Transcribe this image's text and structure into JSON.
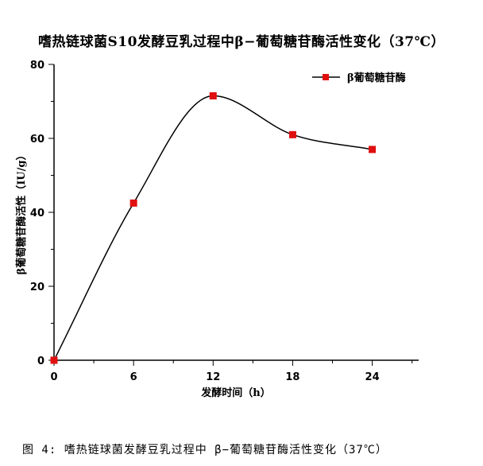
{
  "chart_data": {
    "type": "line",
    "title": "嗜热链球菌S10发酵豆乳过程中β−葡萄糖苷酶活性变化（37℃）",
    "xlabel": "发酵时间（h）",
    "ylabel": "β葡萄糖苷酶活性（IU/g）",
    "x": [
      0,
      6,
      12,
      18,
      24
    ],
    "x_ticks": [
      0,
      6,
      12,
      18,
      24
    ],
    "xlim": [
      0,
      27.5
    ],
    "ylim": [
      0,
      80
    ],
    "y_ticks": [
      0,
      20,
      40,
      60,
      80
    ],
    "series": [
      {
        "name": "β葡萄糖苷酶",
        "values": [
          0,
          42.5,
          71.5,
          61,
          57
        ],
        "color": "#e01010",
        "marker": "square"
      }
    ],
    "legend_position": "top-right",
    "grid": false
  },
  "caption": "图 4: 嗜热链球菌发酵豆乳过程中 β−葡萄糖苷酶活性变化（37℃）"
}
